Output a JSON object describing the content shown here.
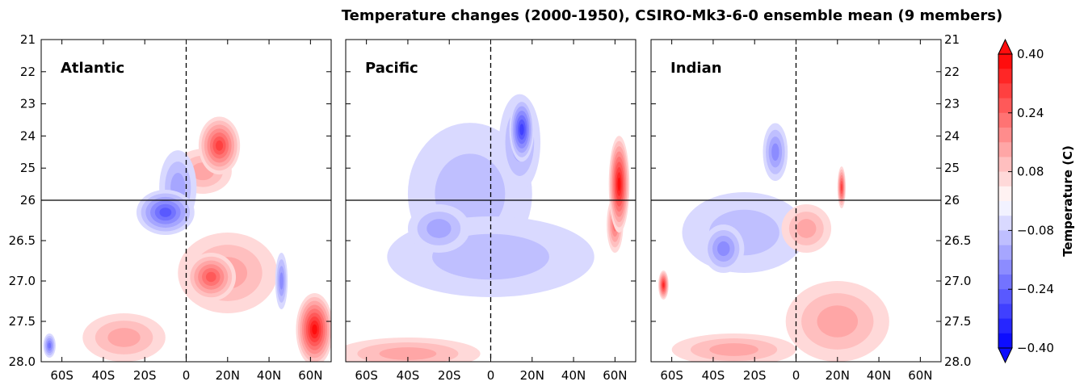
{
  "chart_data": {
    "type": "contour",
    "title": "Temperature changes (2000-1950), CSIRO-Mk3-6-0 ensemble mean (9 members)",
    "x_ticks": [
      "60S",
      "40S",
      "20S",
      "0",
      "20N",
      "40N",
      "60N"
    ],
    "x_tick_values": [
      -60,
      -40,
      -20,
      0,
      20,
      40,
      60
    ],
    "xlim": [
      -70,
      70
    ],
    "upper_y_ticks": [
      "21",
      "22",
      "23",
      "24",
      "25",
      "26"
    ],
    "upper_y_values": [
      21,
      22,
      23,
      24,
      25,
      26
    ],
    "lower_y_ticks": [
      "26.5",
      "27.0",
      "27.5",
      "28.0"
    ],
    "lower_y_values": [
      26.5,
      27.0,
      27.5,
      28.0
    ],
    "upper_ylim": [
      21,
      26
    ],
    "lower_ylim": [
      26,
      28
    ],
    "panels": [
      {
        "label": "Atlantic",
        "blobs": [
          {
            "x": 16,
            "y": 24.3,
            "rx": 10,
            "ry": 0.9,
            "v": 0.28
          },
          {
            "x": 8,
            "y": 25.1,
            "rx": 14,
            "ry": 0.7,
            "v": 0.12
          },
          {
            "x": -10,
            "y": 26.15,
            "rx": 14,
            "ry": 0.28,
            "v": -0.24
          },
          {
            "x": -4,
            "y": 25.6,
            "rx": 9,
            "ry": 0.7,
            "v": -0.12
          },
          {
            "x": 12,
            "y": 26.95,
            "rx": 12,
            "ry": 0.3,
            "v": 0.24
          },
          {
            "x": 20,
            "y": 26.9,
            "rx": 24,
            "ry": 0.5,
            "v": 0.12
          },
          {
            "x": 62,
            "y": 27.6,
            "rx": 9,
            "ry": 0.45,
            "v": 0.36
          },
          {
            "x": 46,
            "y": 27.0,
            "rx": 3,
            "ry": 0.35,
            "v": -0.16
          },
          {
            "x": -30,
            "y": 27.7,
            "rx": 20,
            "ry": 0.3,
            "v": 0.1
          },
          {
            "x": -66,
            "y": 27.8,
            "rx": 3,
            "ry": 0.15,
            "v": -0.2
          }
        ]
      },
      {
        "label": "Pacific",
        "blobs": [
          {
            "x": 15,
            "y": 23.8,
            "rx": 6,
            "ry": 1.0,
            "v": -0.28
          },
          {
            "x": 14,
            "y": 24.2,
            "rx": 10,
            "ry": 1.5,
            "v": -0.1
          },
          {
            "x": -10,
            "y": 25.8,
            "rx": 30,
            "ry": 1.0,
            "v": -0.08
          },
          {
            "x": 0,
            "y": 26.7,
            "rx": 50,
            "ry": 0.5,
            "v": -0.08
          },
          {
            "x": -25,
            "y": 26.35,
            "rx": 15,
            "ry": 0.3,
            "v": -0.12
          },
          {
            "x": 62,
            "y": 25.5,
            "rx": 5,
            "ry": 0.9,
            "v": 0.36
          },
          {
            "x": 60,
            "y": 26.3,
            "rx": 4,
            "ry": 0.35,
            "v": 0.2
          },
          {
            "x": -40,
            "y": 27.9,
            "rx": 35,
            "ry": 0.2,
            "v": 0.1
          }
        ]
      },
      {
        "label": "Indian",
        "blobs": [
          {
            "x": -10,
            "y": 24.5,
            "rx": 6,
            "ry": 0.9,
            "v": -0.14
          },
          {
            "x": 5,
            "y": 26.35,
            "rx": 12,
            "ry": 0.3,
            "v": 0.12
          },
          {
            "x": -35,
            "y": 26.6,
            "rx": 10,
            "ry": 0.3,
            "v": -0.14
          },
          {
            "x": -25,
            "y": 26.4,
            "rx": 30,
            "ry": 0.5,
            "v": -0.08
          },
          {
            "x": -64,
            "y": 27.05,
            "rx": 2.5,
            "ry": 0.18,
            "v": 0.3
          },
          {
            "x": 20,
            "y": 27.5,
            "rx": 25,
            "ry": 0.5,
            "v": 0.1
          },
          {
            "x": -30,
            "y": 27.85,
            "rx": 30,
            "ry": 0.2,
            "v": 0.1
          },
          {
            "x": 22,
            "y": 25.6,
            "rx": 2,
            "ry": 0.5,
            "v": 0.26
          }
        ]
      }
    ],
    "colorbar": {
      "label": "Temperature (C)",
      "tick_labels": [
        "0.40",
        "0.24",
        "0.08",
        "−0.08",
        "−0.24",
        "−0.40"
      ],
      "tick_values": [
        0.4,
        0.24,
        0.08,
        -0.08,
        -0.24,
        -0.4
      ],
      "vmin": -0.4,
      "vmax": 0.4,
      "levels": 20,
      "extend": "both",
      "colormap": "bwr"
    },
    "reference_lines": {
      "dashed_x": 0,
      "solid_y": 26
    }
  }
}
